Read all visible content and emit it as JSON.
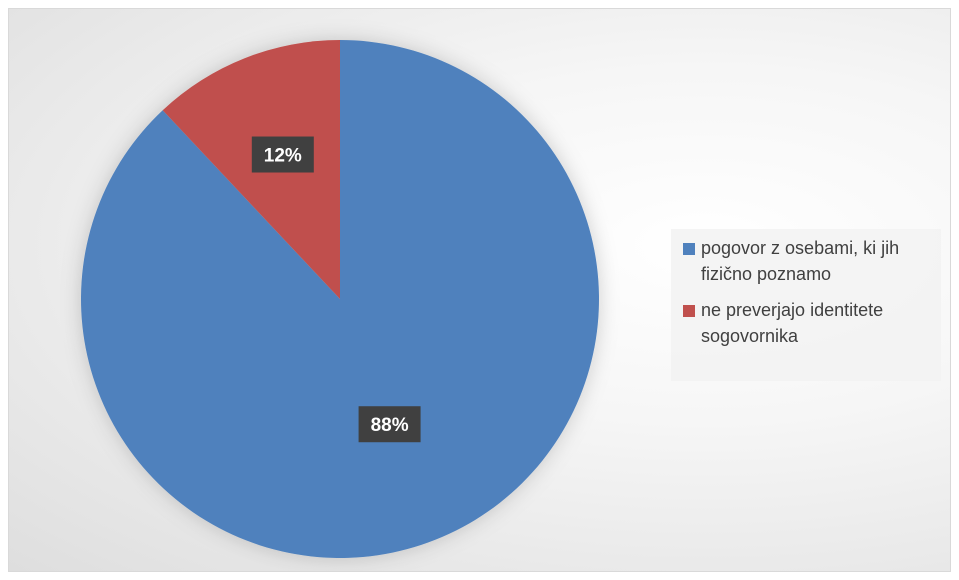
{
  "chart_data": {
    "type": "pie",
    "title": "",
    "legend_position": "right",
    "slices": [
      {
        "name": "pogovor z osebami, ki jih fizično poznamo",
        "value": 88,
        "label": "88%",
        "color": "#4F81BD"
      },
      {
        "name": "ne preverjajo identitete sogovornika",
        "value": 12,
        "label": "12%",
        "color": "#C0504D"
      }
    ]
  }
}
